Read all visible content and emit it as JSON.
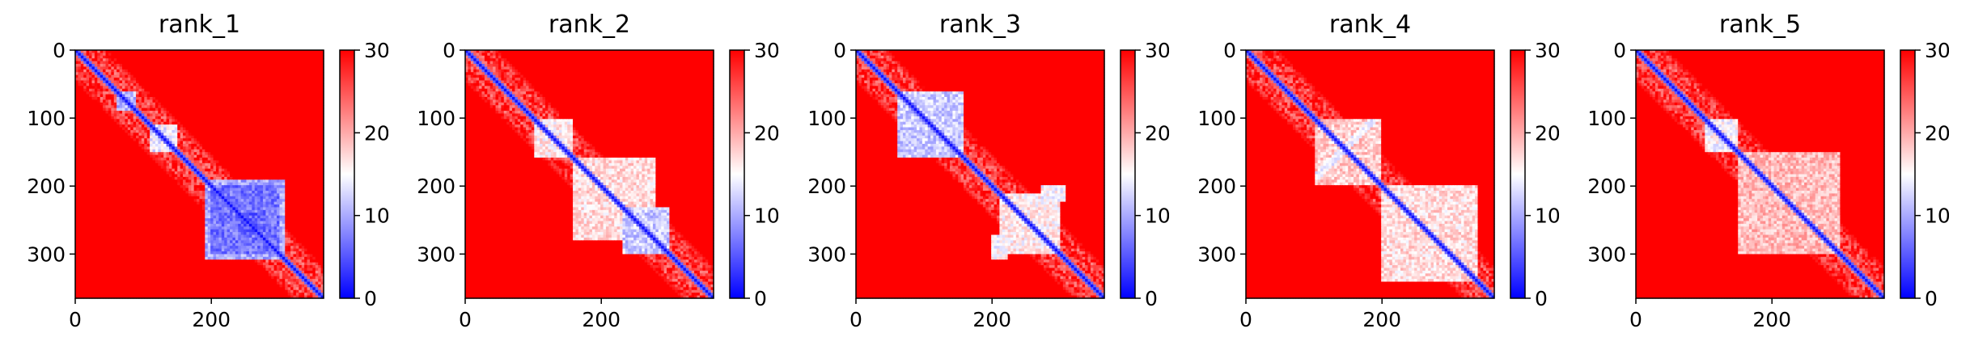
{
  "chart_data": [
    {
      "type": "heatmap",
      "title": "rank_1",
      "xlim": [
        0,
        365
      ],
      "ylim": [
        365,
        0
      ],
      "xticks": [
        "0",
        "200"
      ],
      "yticks": [
        "0",
        "100",
        "200",
        "300"
      ],
      "colorbar": {
        "range": [
          0,
          30
        ],
        "ticks": [
          "0",
          "10",
          "20",
          "30"
        ],
        "colormap": "bwr"
      },
      "colors": {
        "low": "#0000ff",
        "mid": "#ffffff",
        "high": "#ff0000"
      },
      "features": [
        {
          "kind": "diagonal",
          "value": 1
        },
        {
          "kind": "domain",
          "x": [
            190,
            310
          ],
          "y": [
            190,
            310
          ],
          "value": 7
        },
        {
          "kind": "domain",
          "x": [
            200,
            300
          ],
          "y": [
            200,
            300
          ],
          "value": 4
        },
        {
          "kind": "domain",
          "x": [
            110,
            150
          ],
          "y": [
            110,
            150
          ],
          "value": 11
        },
        {
          "kind": "domain",
          "x": [
            60,
            90
          ],
          "y": [
            60,
            90
          ],
          "value": 8
        },
        {
          "kind": "domain",
          "x": [
            240,
            270
          ],
          "y": [
            240,
            270
          ],
          "value": 3
        }
      ]
    },
    {
      "type": "heatmap",
      "title": "rank_2",
      "xlim": [
        0,
        365
      ],
      "ylim": [
        365,
        0
      ],
      "xticks": [
        "0",
        "200"
      ],
      "yticks": [
        "0",
        "100",
        "200",
        "300"
      ],
      "colorbar": {
        "range": [
          0,
          30
        ],
        "ticks": [
          "0",
          "10",
          "20",
          "30"
        ],
        "colormap": "bwr"
      },
      "colors": {
        "low": "#0000ff",
        "mid": "#ffffff",
        "high": "#ff0000"
      },
      "features": [
        {
          "kind": "diagonal",
          "value": 1
        },
        {
          "kind": "domain",
          "x": [
            230,
            300
          ],
          "y": [
            230,
            300
          ],
          "value": 9
        },
        {
          "kind": "domain",
          "x": [
            160,
            280
          ],
          "y": [
            160,
            280
          ],
          "value": 14
        },
        {
          "kind": "domain",
          "x": [
            100,
            160
          ],
          "y": [
            100,
            160
          ],
          "value": 13
        }
      ]
    },
    {
      "type": "heatmap",
      "title": "rank_3",
      "xlim": [
        0,
        365
      ],
      "ylim": [
        365,
        0
      ],
      "xticks": [
        "0",
        "200"
      ],
      "yticks": [
        "0",
        "100",
        "200",
        "300"
      ],
      "colorbar": {
        "range": [
          0,
          30
        ],
        "ticks": [
          "0",
          "10",
          "20",
          "30"
        ],
        "colormap": "bwr"
      },
      "colors": {
        "low": "#0000ff",
        "mid": "#ffffff",
        "high": "#ff0000"
      },
      "features": [
        {
          "kind": "diagonal",
          "value": 1
        },
        {
          "kind": "domain",
          "x": [
            60,
            160
          ],
          "y": [
            60,
            160
          ],
          "value": 9
        },
        {
          "kind": "domain",
          "x": [
            210,
            300
          ],
          "y": [
            210,
            300
          ],
          "value": 13
        },
        {
          "kind": "offdiag",
          "x": [
            200,
            225
          ],
          "y": [
            270,
            310
          ],
          "value": 12
        }
      ]
    },
    {
      "type": "heatmap",
      "title": "rank_4",
      "xlim": [
        0,
        365
      ],
      "ylim": [
        365,
        0
      ],
      "xticks": [
        "0",
        "200"
      ],
      "yticks": [
        "0",
        "100",
        "200",
        "300"
      ],
      "colorbar": {
        "range": [
          0,
          30
        ],
        "ticks": [
          "0",
          "10",
          "20",
          "30"
        ],
        "colormap": "bwr"
      },
      "colors": {
        "low": "#0000ff",
        "mid": "#ffffff",
        "high": "#ff0000"
      },
      "features": [
        {
          "kind": "diagonal",
          "value": 1
        },
        {
          "kind": "antidiag",
          "x": [
            100,
            190
          ],
          "y": [
            100,
            190
          ],
          "value": 12
        },
        {
          "kind": "domain",
          "x": [
            100,
            200
          ],
          "y": [
            100,
            200
          ],
          "value": 15
        },
        {
          "kind": "domain",
          "x": [
            200,
            340
          ],
          "y": [
            200,
            340
          ],
          "value": 14
        }
      ]
    },
    {
      "type": "heatmap",
      "title": "rank_5",
      "xlim": [
        0,
        365
      ],
      "ylim": [
        365,
        0
      ],
      "xticks": [
        "0",
        "200"
      ],
      "yticks": [
        "0",
        "100",
        "200",
        "300"
      ],
      "colorbar": {
        "range": [
          0,
          30
        ],
        "ticks": [
          "0",
          "10",
          "20",
          "30"
        ],
        "colormap": "bwr"
      },
      "colors": {
        "low": "#0000ff",
        "mid": "#ffffff",
        "high": "#ff0000"
      },
      "features": [
        {
          "kind": "diagonal",
          "value": 1
        },
        {
          "kind": "domain",
          "x": [
            100,
            150
          ],
          "y": [
            100,
            150
          ],
          "value": 12
        },
        {
          "kind": "domain",
          "x": [
            150,
            300
          ],
          "y": [
            150,
            300
          ],
          "value": 16
        }
      ]
    }
  ]
}
